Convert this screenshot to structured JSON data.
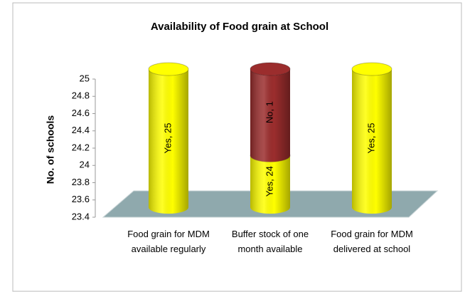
{
  "chart_data": {
    "type": "bar3d-stacked",
    "title": "Availability  of Food grain at School",
    "y_label": "No. of schools",
    "categories": [
      "Food grain for MDM available regularly",
      "Buffer stock of one month available",
      "Food grain for MDM delivered at school"
    ],
    "series": [
      {
        "color": "#ffff00",
        "values": [
          25,
          24,
          25
        ],
        "value_labels": [
          "Yes, 25",
          "Yes, 24",
          "Yes, 25"
        ]
      },
      {
        "color": "#9b2d2d",
        "values": [
          null,
          1,
          null
        ],
        "value_labels": [
          null,
          "No, 1",
          null
        ]
      }
    ],
    "ylim": [
      23.4,
      25
    ],
    "yticks": [
      23.4,
      23.6,
      23.8,
      24,
      24.2,
      24.4,
      24.6,
      24.8,
      25
    ],
    "floor_color": "#8fa9ad"
  }
}
